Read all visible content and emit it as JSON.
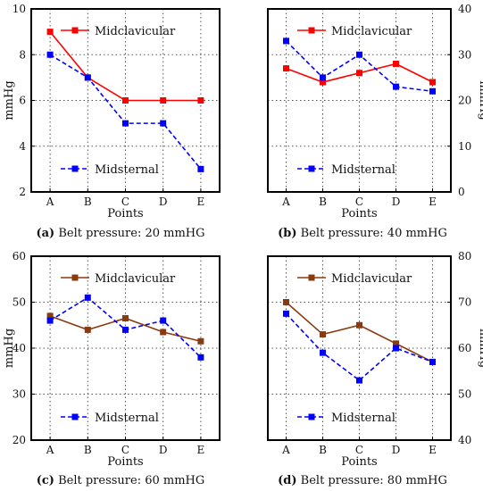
{
  "chart_data": [
    {
      "type": "line",
      "caption_tag": "(a)",
      "caption_text": "Belt pressure: 20 mmHG",
      "categories": [
        "A",
        "B",
        "C",
        "D",
        "E"
      ],
      "xlabel": "Points",
      "ylabel": "mmHg",
      "ylabel_side": "left",
      "ylim": [
        2,
        10
      ],
      "yticks": [
        2,
        4,
        6,
        8,
        10
      ],
      "grid": true,
      "series": [
        {
          "name": "Midclavicular",
          "values": [
            9,
            7,
            6,
            6,
            6
          ],
          "color": "#ff0000",
          "dash": false
        },
        {
          "name": "Midsternal",
          "values": [
            8,
            7,
            5,
            5,
            3
          ],
          "color": "#0000ff",
          "dash": true
        }
      ]
    },
    {
      "type": "line",
      "caption_tag": "(b)",
      "caption_text": "Belt pressure: 40 mmHG",
      "categories": [
        "A",
        "B",
        "C",
        "D",
        "E"
      ],
      "xlabel": "Points",
      "ylabel": "mmHg",
      "ylabel_side": "right",
      "ylim": [
        0,
        40
      ],
      "yticks": [
        0,
        10,
        20,
        30,
        40
      ],
      "grid": true,
      "series": [
        {
          "name": "Midclavicular",
          "values": [
            27,
            24,
            26,
            28,
            24
          ],
          "color": "#ff0000",
          "dash": false
        },
        {
          "name": "Midsternal",
          "values": [
            33,
            25,
            30,
            23,
            22
          ],
          "color": "#0000ff",
          "dash": true
        }
      ]
    },
    {
      "type": "line",
      "caption_tag": "(c)",
      "caption_text": "Belt pressure: 60 mmHG",
      "categories": [
        "A",
        "B",
        "C",
        "D",
        "E"
      ],
      "xlabel": "Points",
      "ylabel": "mmHg",
      "ylabel_side": "left",
      "ylim": [
        20,
        60
      ],
      "yticks": [
        20,
        30,
        40,
        50,
        60
      ],
      "grid": true,
      "series": [
        {
          "name": "Midclavicular",
          "values": [
            47,
            44,
            46.5,
            43.5,
            41.5
          ],
          "color": "#8b3a0e",
          "dash": false
        },
        {
          "name": "Midsternal",
          "values": [
            46,
            51,
            44,
            46,
            38
          ],
          "color": "#0000ff",
          "dash": true
        }
      ]
    },
    {
      "type": "line",
      "caption_tag": "(d)",
      "caption_text": "Belt pressure: 80 mmHG",
      "categories": [
        "A",
        "B",
        "C",
        "D",
        "E"
      ],
      "xlabel": "Points",
      "ylabel": "mmHg",
      "ylabel_side": "right",
      "ylim": [
        40,
        80
      ],
      "yticks": [
        40,
        50,
        60,
        70,
        80
      ],
      "grid": true,
      "series": [
        {
          "name": "Midclavicular",
          "values": [
            70,
            63,
            65,
            61,
            57
          ],
          "color": "#8b3a0e",
          "dash": false
        },
        {
          "name": "Midsternal",
          "values": [
            67.5,
            59,
            53,
            60,
            57
          ],
          "color": "#0000ff",
          "dash": true
        }
      ]
    }
  ]
}
